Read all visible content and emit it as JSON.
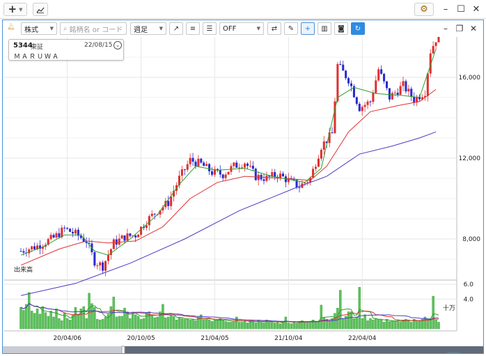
{
  "outer": {
    "plus_label": "+",
    "trend_icon": "trend-icon",
    "settings_icon": "gear-icon",
    "minimize": "–",
    "maximize": "☐",
    "close": "✕"
  },
  "toolbar": {
    "hot_label": "Hot",
    "market_select": "株式",
    "search_placeholder": "銘柄名 or コード",
    "period_select": "週足",
    "indicator_select": "OFF",
    "window_minimize": "–",
    "window_restore": "❐",
    "window_close": "✕"
  },
  "info_box": {
    "code": "5344",
    "market": "東証",
    "date": "22/08/15",
    "name": "ＭＡＲＵＷＡ"
  },
  "price_axis": {
    "ticks": [
      "16,000",
      "12,000",
      "8,000"
    ]
  },
  "volume_panel": {
    "label": "出来高",
    "ticks": [
      "6.0",
      "4.0"
    ],
    "unit": "十万"
  },
  "x_axis": {
    "ticks": [
      "20/04/06",
      "20/10/05",
      "21/04/05",
      "21/10/04",
      "22/04/04"
    ]
  },
  "chart_data": {
    "type": "candlestick",
    "price_ylim": [
      6000,
      18000
    ],
    "volume_ylim": [
      0,
      6.0
    ],
    "up_color": "#e03030",
    "down_color": "#2a2ad0",
    "ma_short_color": "#2e9e2e",
    "ma_mid_color": "#e03030",
    "ma_long_color": "#4a3cc8",
    "volume_color": "#5cc25c",
    "close_points": [
      [
        0,
        7400
      ],
      [
        6,
        7650
      ],
      [
        12,
        8050
      ],
      [
        16,
        8500
      ],
      [
        20,
        8250
      ],
      [
        24,
        7900
      ],
      [
        27,
        6900
      ],
      [
        30,
        6650
      ],
      [
        34,
        7800
      ],
      [
        38,
        8100
      ],
      [
        42,
        8200
      ],
      [
        46,
        8900
      ],
      [
        50,
        9400
      ],
      [
        54,
        9800
      ],
      [
        58,
        11000
      ],
      [
        62,
        11900
      ],
      [
        66,
        11700
      ],
      [
        70,
        11300
      ],
      [
        74,
        11200
      ],
      [
        78,
        11600
      ],
      [
        82,
        11800
      ],
      [
        86,
        11100
      ],
      [
        90,
        11000
      ],
      [
        94,
        11200
      ],
      [
        98,
        10900
      ],
      [
        102,
        10600
      ],
      [
        106,
        11000
      ],
      [
        110,
        12600
      ],
      [
        114,
        13200
      ],
      [
        116,
        16600
      ],
      [
        120,
        15900
      ],
      [
        124,
        14500
      ],
      [
        128,
        14800
      ],
      [
        131,
        16400
      ],
      [
        135,
        15000
      ],
      [
        140,
        15600
      ],
      [
        144,
        14900
      ],
      [
        148,
        15300
      ],
      [
        150,
        17300
      ],
      [
        152,
        17900
      ]
    ],
    "ma_short_points": [
      [
        0,
        7200
      ],
      [
        8,
        7600
      ],
      [
        16,
        8200
      ],
      [
        22,
        8200
      ],
      [
        27,
        7400
      ],
      [
        32,
        7200
      ],
      [
        40,
        8000
      ],
      [
        50,
        9200
      ],
      [
        58,
        10700
      ],
      [
        64,
        11600
      ],
      [
        72,
        11400
      ],
      [
        82,
        11500
      ],
      [
        92,
        11100
      ],
      [
        104,
        10800
      ],
      [
        110,
        11500
      ],
      [
        116,
        15000
      ],
      [
        122,
        15500
      ],
      [
        130,
        15200
      ],
      [
        140,
        15100
      ],
      [
        146,
        15000
      ],
      [
        152,
        17400
      ]
    ],
    "ma_mid_points": [
      [
        0,
        6700
      ],
      [
        14,
        7500
      ],
      [
        24,
        7900
      ],
      [
        32,
        7800
      ],
      [
        42,
        7900
      ],
      [
        52,
        8600
      ],
      [
        62,
        10000
      ],
      [
        72,
        10800
      ],
      [
        82,
        11100
      ],
      [
        96,
        11000
      ],
      [
        106,
        10900
      ],
      [
        112,
        11600
      ],
      [
        120,
        13300
      ],
      [
        128,
        14300
      ],
      [
        138,
        14600
      ],
      [
        146,
        14800
      ],
      [
        152,
        15400
      ]
    ],
    "ma_long_points": [
      [
        0,
        5200
      ],
      [
        20,
        5800
      ],
      [
        40,
        6800
      ],
      [
        60,
        8000
      ],
      [
        80,
        9400
      ],
      [
        100,
        10500
      ],
      [
        112,
        11100
      ],
      [
        124,
        12200
      ],
      [
        136,
        12600
      ],
      [
        146,
        13000
      ],
      [
        152,
        13300
      ]
    ],
    "volume_values": [
      2.9,
      2.5,
      3.3,
      4.9,
      2.4,
      2.1,
      2.7,
      2.0,
      3.0,
      2.2,
      1.7,
      2.4,
      1.6,
      2.7,
      1.4,
      1.1,
      2.2,
      1.4,
      1.2,
      1.9,
      2.9,
      2.0,
      2.7,
      3.0,
      1.4,
      4.8,
      3.4,
      2.9,
      1.3,
      1.2,
      1.3,
      1.6,
      2.0,
      3.0,
      4.3,
      1.6,
      1.7,
      1.7,
      2.8,
      2.3,
      1.4,
      2.2,
      1.9,
      1.7,
      1.3,
      1.4,
      2.2,
      2.3,
      1.7,
      1.5,
      1.6,
      2.3,
      3.3,
      1.5,
      1.6,
      1.8,
      1.7,
      1.2,
      1.5,
      1.4,
      1.3,
      1.3,
      1.2,
      1.3,
      1.1,
      1.6,
      1.9,
      1.3,
      1.3,
      1.2,
      1.0,
      1.1,
      1.2,
      1.4,
      1.1,
      1.0,
      0.9,
      0.9,
      1.0,
      1.6,
      0.9,
      0.9,
      1.1,
      0.8,
      1.1,
      1.0,
      0.8,
      1.2,
      0.9,
      0.8,
      1.2,
      1.1,
      0.9,
      0.8,
      1.0,
      0.7,
      0.8,
      1.6,
      0.8,
      0.7,
      0.9,
      0.8,
      1.0,
      1.1,
      0.9,
      1.0,
      1.0,
      1.2,
      0.9,
      1.0,
      3.2,
      1.5,
      1.3,
      1.0,
      1.4,
      2.1,
      2.8,
      5.2,
      1.4,
      1.7,
      2.3,
      2.3,
      1.4,
      1.6,
      5.6,
      1.4,
      1.9,
      1.1,
      1.4,
      1.2,
      1.4,
      1.3,
      1.2,
      0.9,
      1.3,
      1.0,
      1.1,
      1.0,
      1.1,
      0.9,
      1.2,
      1.3,
      1.2,
      0.9,
      1.3,
      1.0,
      1.1,
      1.3,
      1.6,
      1.3,
      1.4,
      4.4,
      1.2,
      0.9
    ]
  }
}
